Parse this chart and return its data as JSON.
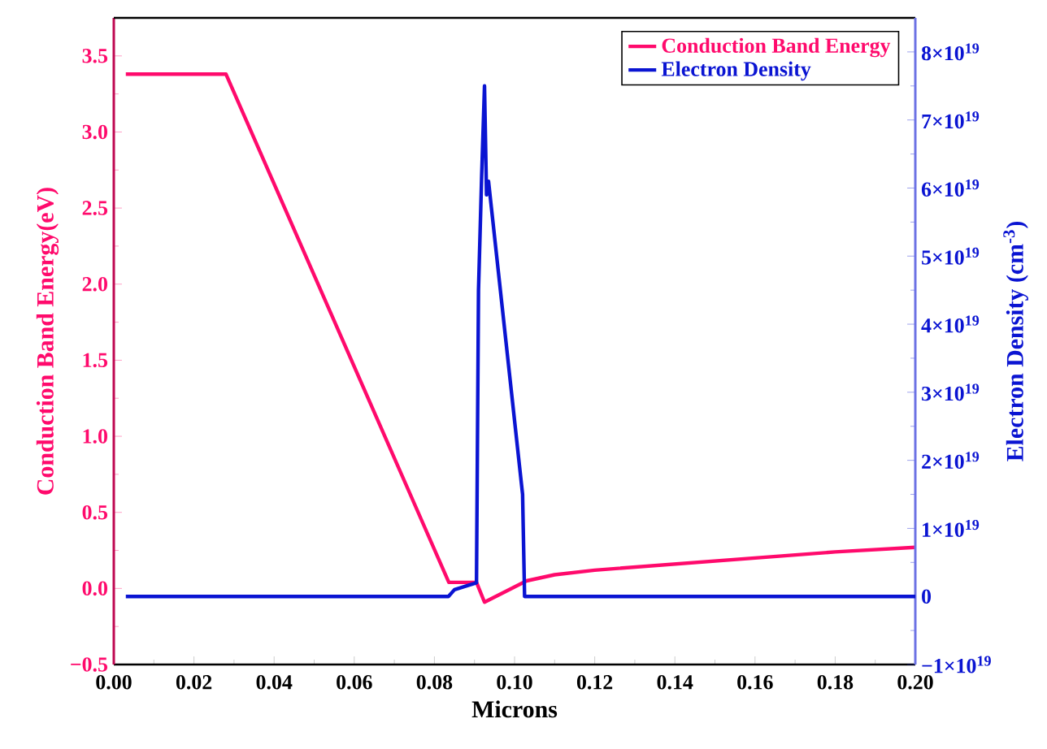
{
  "chart_data": {
    "type": "line",
    "xlabel": "Microns",
    "ylabel": "Conduction Band Energy(eV)",
    "y2label": "Electron Density (cm$^{-3}$)",
    "series": [
      {
        "name": "Conduction Band Energy",
        "color": "#ff0a6c",
        "x": [
          0.003,
          0.028,
          0.0836,
          0.085,
          0.0905,
          0.0925,
          0.103,
          0.11,
          0.12,
          0.14,
          0.16,
          0.18,
          0.2
        ],
        "values": [
          3.38,
          3.38,
          0.04,
          0.04,
          0.04,
          -0.09,
          0.05,
          0.09,
          0.12,
          0.16,
          0.2,
          0.24,
          0.27
        ]
      },
      {
        "name": "Electron Density",
        "color": "#0a14d2",
        "axis": "y2",
        "x": [
          0.003,
          0.0835,
          0.085,
          0.0905,
          0.091,
          0.0918,
          0.0925,
          0.093,
          0.0935,
          0.102,
          0.1025,
          0.11,
          0.2
        ],
        "values": [
          0,
          0,
          1e+18,
          2e+18,
          4.5e+19,
          6.2e+19,
          7.5e+19,
          5.9e+19,
          6.1e+19,
          1.5e+19,
          0,
          0,
          0
        ]
      }
    ],
    "xlim": [
      0.0,
      0.2
    ],
    "ylim": [
      -0.5,
      3.75
    ],
    "y2lim": [
      -1e+19,
      8.5e+19
    ],
    "xticks": [
      {
        "value": 0,
        "label": "0.00"
      },
      {
        "value": 0.02,
        "label": "0.02"
      },
      {
        "value": 0.04,
        "label": "0.04"
      },
      {
        "value": 0.06,
        "label": "0.06"
      },
      {
        "value": 0.08,
        "label": "0.08"
      },
      {
        "value": 0.1,
        "label": "0.10"
      },
      {
        "value": 0.12,
        "label": "0.12"
      },
      {
        "value": 0.14,
        "label": "0.14"
      },
      {
        "value": 0.16,
        "label": "0.16"
      },
      {
        "value": 0.18,
        "label": "0.18"
      },
      {
        "value": 0.2,
        "label": "0.20"
      }
    ],
    "yticks": [
      {
        "value": -0.5,
        "label": "−0.5"
      },
      {
        "value": 0,
        "label": "0.0"
      },
      {
        "value": 0.5,
        "label": "0.5"
      },
      {
        "value": 1,
        "label": "1.0"
      },
      {
        "value": 1.5,
        "label": "1.5"
      },
      {
        "value": 2,
        "label": "2.0"
      },
      {
        "value": 2.5,
        "label": "2.5"
      },
      {
        "value": 3,
        "label": "3.0"
      },
      {
        "value": 3.5,
        "label": "3.5"
      }
    ],
    "y2ticks": [
      {
        "value": -1e+19,
        "label": "−1×10$^{19}$"
      },
      0,
      {
        "value": 1e+19,
        "label": "1×10$^{19}$"
      },
      {
        "value": 2e+19,
        "label": "2×10$^{19}$"
      },
      {
        "value": 3e+19,
        "label": "3×10$^{19}$"
      },
      {
        "value": 4e+19,
        "label": "4×10$^{19}$"
      },
      {
        "value": 5e+19,
        "label": "5×10$^{19}$"
      },
      {
        "value": 6e+19,
        "label": "6×10$^{19}$"
      },
      {
        "value": 7e+19,
        "label": "7×10$^{19}$"
      },
      {
        "value": 8e+19,
        "label": "8×10$^{19}$"
      }
    ],
    "legend": "top right",
    "grid": false,
    "marker": "none",
    "line_style": "solid"
  }
}
